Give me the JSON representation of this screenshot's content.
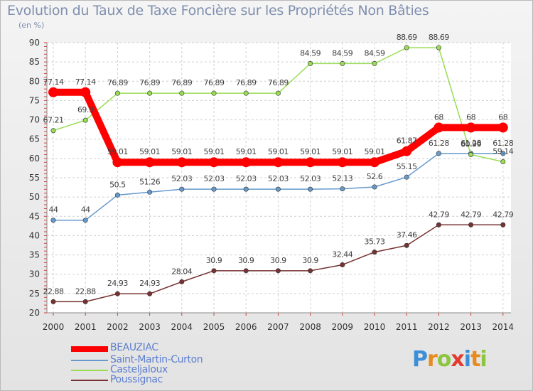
{
  "chart_data": {
    "type": "line",
    "title": "Evolution du Taux de Taxe Foncière sur les Propriétés Non Bâties",
    "ylabel": "(en %)",
    "xlabel": "",
    "ylim": [
      20,
      90
    ],
    "yticks": [
      20,
      25,
      30,
      35,
      40,
      45,
      50,
      55,
      60,
      65,
      70,
      75,
      80,
      85,
      90
    ],
    "categories": [
      "2000",
      "2001",
      "2002",
      "2003",
      "2004",
      "2005",
      "2006",
      "2007",
      "2008",
      "2009",
      "2010",
      "2011",
      "2012",
      "2013",
      "2014"
    ],
    "grid": true,
    "legend_position": "bottom-left",
    "series": [
      {
        "name": "BEAUZIAC",
        "color": "#ff0000",
        "values": [
          77.14,
          77.14,
          59.01,
          59.01,
          59.01,
          59.01,
          59.01,
          59.01,
          59.01,
          59.01,
          59.01,
          61.87,
          68,
          68,
          68
        ],
        "labels": [
          "77.14",
          "77.14",
          "59.01",
          "59.01",
          "59.01",
          "59.01",
          "59.01",
          "59.01",
          "59.01",
          "59.01",
          "59.01",
          "61.87",
          "68",
          "68",
          "68"
        ]
      },
      {
        "name": "Saint-Martin-Curton",
        "color": "#6699cc",
        "values": [
          44,
          44,
          50.5,
          51.26,
          52.03,
          52.03,
          52.03,
          52.03,
          52.03,
          52.13,
          52.6,
          55.15,
          61.28,
          61.28,
          61.28
        ],
        "labels": [
          "44",
          "44",
          "50.5",
          "51.26",
          "52.03",
          "52.03",
          "52.03",
          "52.03",
          "52.03",
          "52.13",
          "52.6",
          "55.15",
          "61.28",
          "61.28",
          "61.28"
        ]
      },
      {
        "name": "Casteljaloux",
        "color": "#99dd55",
        "values": [
          67.21,
          69.9,
          76.89,
          76.89,
          76.89,
          76.89,
          76.89,
          76.89,
          84.59,
          84.59,
          84.59,
          88.69,
          88.69,
          60.99,
          59.14
        ],
        "labels": [
          "67.21",
          "69.9",
          "76.89",
          "76.89",
          "76.89",
          "76.89",
          "76.89",
          "76.89",
          "84.59",
          "84.59",
          "84.59",
          "88.69",
          "88.69",
          "60.99",
          "59.14"
        ]
      },
      {
        "name": "Poussignac",
        "color": "#773333",
        "values": [
          22.88,
          22.88,
          24.93,
          24.93,
          28.04,
          30.9,
          30.9,
          30.9,
          30.9,
          32.44,
          35.73,
          37.46,
          42.79,
          42.79,
          42.79
        ],
        "labels": [
          "22.88",
          "22.88",
          "24.93",
          "24.93",
          "28.04",
          "30.9",
          "30.9",
          "30.9",
          "30.9",
          "32.44",
          "35.73",
          "37.46",
          "42.79",
          "42.79",
          "42.79"
        ]
      }
    ]
  },
  "brand": {
    "text": "Proxiti",
    "letter_colors": [
      "#3b8ed8",
      "#e68c1e",
      "#8cc63e",
      "#e23a2e",
      "#3b8ed8",
      "#e68c1e",
      "#8cc63e"
    ]
  }
}
